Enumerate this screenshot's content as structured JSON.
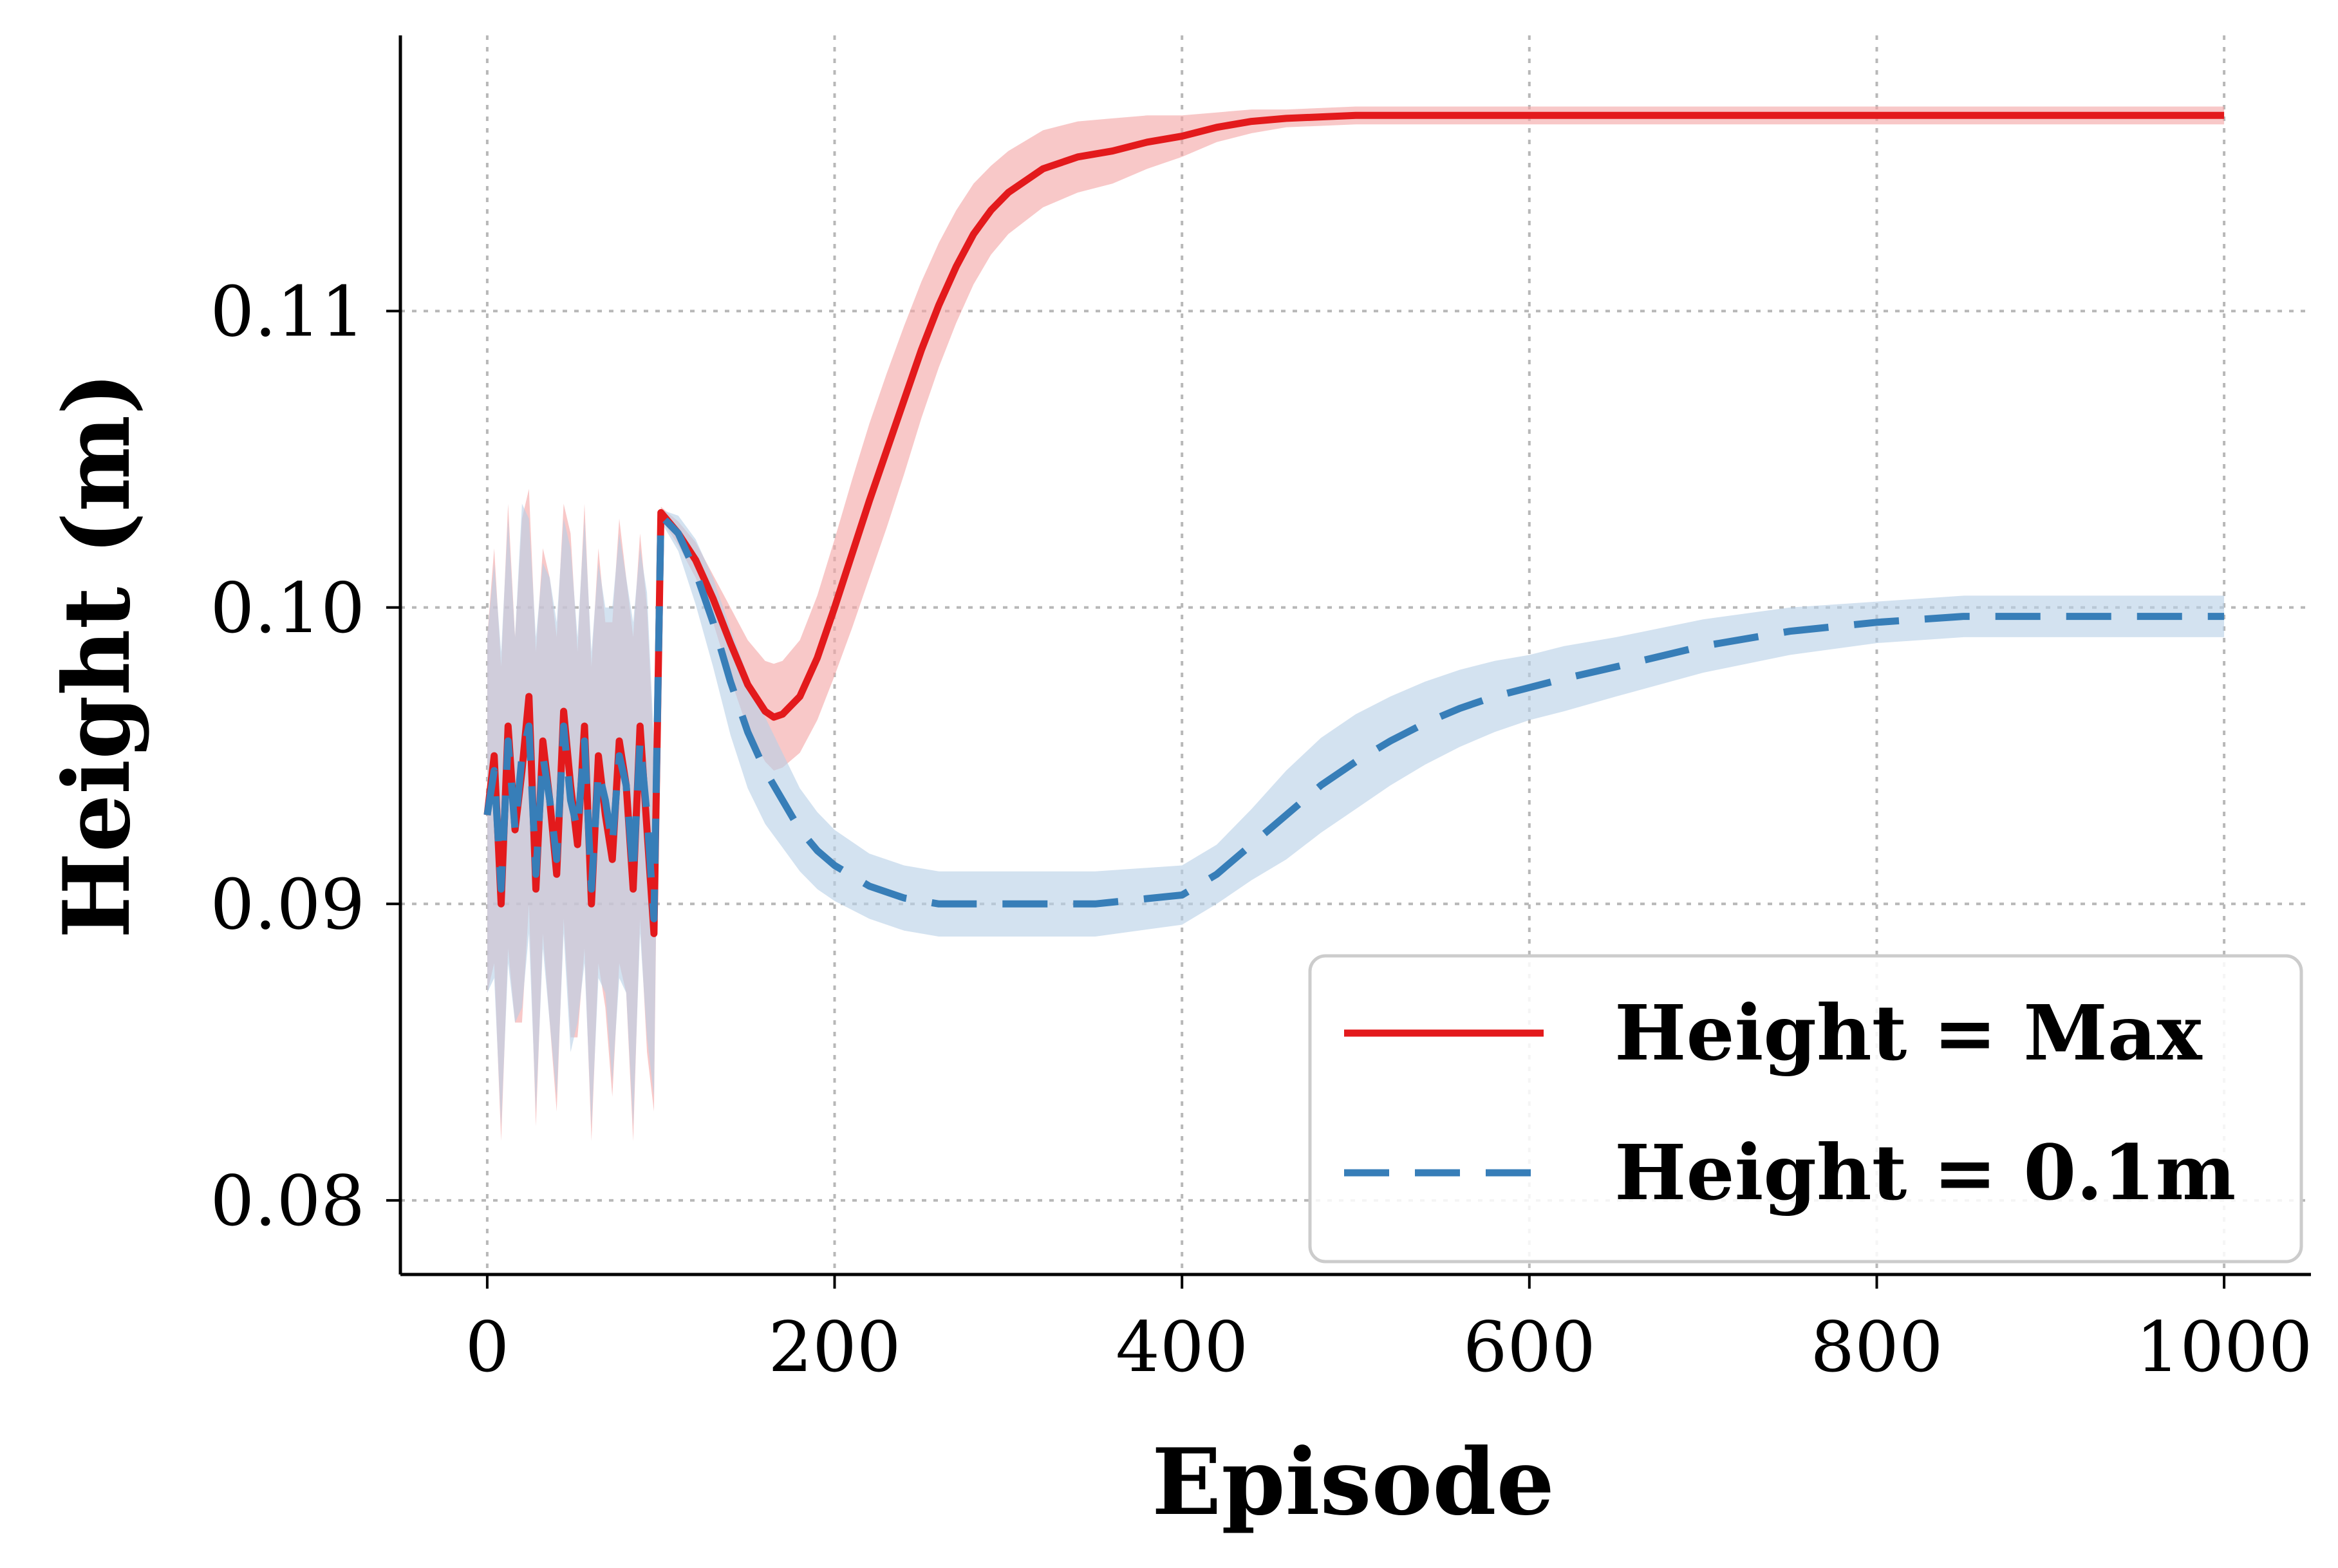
{
  "chart_data": {
    "type": "line",
    "title": "",
    "xlabel": "Episode",
    "ylabel": "Height (m)",
    "xlim": [
      -50,
      1050
    ],
    "ylim": [
      0.0775,
      0.1193
    ],
    "xticks": [
      0,
      200,
      400,
      600,
      800,
      1000
    ],
    "xtick_labels": [
      "0",
      "200",
      "400",
      "600",
      "800",
      "1000"
    ],
    "yticks": [
      0.08,
      0.09,
      0.1,
      0.11
    ],
    "ytick_labels": [
      "0.08",
      "0.09",
      "0.10",
      "0.11"
    ],
    "grid": true,
    "legend_position": "lower-right",
    "series": [
      {
        "name": "Height = Max",
        "label": "Height = Max",
        "color": "#e31a1c",
        "band_color": "#f4a6a6",
        "line_style": "solid",
        "x": [
          0,
          4,
          8,
          12,
          16,
          20,
          24,
          28,
          32,
          36,
          40,
          44,
          48,
          52,
          56,
          60,
          64,
          68,
          72,
          76,
          80,
          84,
          88,
          92,
          96,
          100,
          110,
          120,
          130,
          140,
          150,
          160,
          165,
          170,
          180,
          190,
          200,
          210,
          220,
          230,
          240,
          250,
          260,
          270,
          280,
          290,
          300,
          320,
          340,
          360,
          380,
          400,
          420,
          440,
          460,
          500,
          550,
          600,
          700,
          800,
          900,
          1000
        ],
        "y": [
          0.093,
          0.095,
          0.09,
          0.096,
          0.0925,
          0.0945,
          0.097,
          0.0905,
          0.0955,
          0.0935,
          0.091,
          0.0965,
          0.094,
          0.092,
          0.096,
          0.09,
          0.095,
          0.093,
          0.0915,
          0.0955,
          0.094,
          0.0905,
          0.096,
          0.0925,
          0.089,
          0.1032,
          0.1025,
          0.1016,
          0.1003,
          0.0988,
          0.0974,
          0.0965,
          0.0963,
          0.0964,
          0.097,
          0.0983,
          0.1,
          0.1018,
          0.1036,
          0.1053,
          0.107,
          0.1087,
          0.1102,
          0.1115,
          0.1126,
          0.1134,
          0.114,
          0.1148,
          0.1152,
          0.1154,
          0.1157,
          0.1159,
          0.1162,
          0.1164,
          0.1165,
          0.1166,
          0.1166,
          0.1166,
          0.1166,
          0.1166,
          0.1166,
          0.1166
        ],
        "band": [
          0.006,
          0.007,
          0.008,
          0.0075,
          0.0065,
          0.0085,
          0.007,
          0.008,
          0.0065,
          0.0075,
          0.008,
          0.007,
          0.0085,
          0.0065,
          0.0075,
          0.008,
          0.007,
          0.0065,
          0.008,
          0.0075,
          0.007,
          0.0085,
          0.0065,
          0.0075,
          0.006,
          0.0002,
          0.0004,
          0.0006,
          0.0008,
          0.0012,
          0.0015,
          0.0017,
          0.0018,
          0.0018,
          0.0019,
          0.0021,
          0.0023,
          0.0025,
          0.0026,
          0.0026,
          0.0025,
          0.0023,
          0.0021,
          0.0019,
          0.0017,
          0.0015,
          0.0014,
          0.0013,
          0.0012,
          0.0011,
          0.0009,
          0.0007,
          0.0005,
          0.0004,
          0.0003,
          0.0003,
          0.0003,
          0.0003,
          0.0003,
          0.0003,
          0.0003,
          0.0003
        ]
      },
      {
        "name": "Height = 0.1m",
        "label": "Height = 0.1m",
        "color": "#377eb8",
        "band_color": "#b8d0e6",
        "line_style": "dashed",
        "x": [
          0,
          4,
          8,
          12,
          16,
          20,
          24,
          28,
          32,
          36,
          40,
          44,
          48,
          52,
          56,
          60,
          64,
          68,
          72,
          76,
          80,
          84,
          88,
          92,
          96,
          100,
          110,
          120,
          130,
          140,
          150,
          160,
          170,
          180,
          190,
          200,
          220,
          240,
          260,
          280,
          300,
          350,
          400,
          420,
          440,
          460,
          480,
          500,
          520,
          540,
          560,
          580,
          600,
          620,
          650,
          700,
          750,
          800,
          850,
          900,
          950,
          1000
        ],
        "y": [
          0.093,
          0.0945,
          0.0905,
          0.0955,
          0.0925,
          0.095,
          0.096,
          0.091,
          0.095,
          0.0935,
          0.0915,
          0.096,
          0.0935,
          0.0925,
          0.0955,
          0.0905,
          0.0945,
          0.0935,
          0.092,
          0.095,
          0.094,
          0.091,
          0.0955,
          0.093,
          0.0895,
          0.1031,
          0.1025,
          0.1012,
          0.0995,
          0.0975,
          0.0958,
          0.0945,
          0.0935,
          0.0925,
          0.0918,
          0.0913,
          0.0906,
          0.0902,
          0.09,
          0.09,
          0.09,
          0.09,
          0.0903,
          0.091,
          0.092,
          0.093,
          0.094,
          0.0948,
          0.0955,
          0.0961,
          0.0966,
          0.097,
          0.0973,
          0.0976,
          0.098,
          0.0987,
          0.0992,
          0.0995,
          0.0997,
          0.0997,
          0.0997,
          0.0997
        ],
        "band": [
          0.006,
          0.007,
          0.008,
          0.0075,
          0.0065,
          0.0085,
          0.007,
          0.008,
          0.0065,
          0.0075,
          0.008,
          0.007,
          0.0085,
          0.0065,
          0.0075,
          0.008,
          0.007,
          0.0065,
          0.008,
          0.0075,
          0.007,
          0.0085,
          0.0065,
          0.0075,
          0.006,
          0.0002,
          0.0006,
          0.0011,
          0.0015,
          0.0018,
          0.0019,
          0.0018,
          0.0016,
          0.0014,
          0.0013,
          0.0012,
          0.0011,
          0.0011,
          0.0011,
          0.0011,
          0.0011,
          0.0011,
          0.001,
          0.001,
          0.0012,
          0.0015,
          0.0016,
          0.0016,
          0.0015,
          0.0014,
          0.0013,
          0.0012,
          0.0011,
          0.0011,
          0.001,
          0.0009,
          0.0008,
          0.0007,
          0.0007,
          0.0007,
          0.0007,
          0.0007
        ]
      }
    ]
  }
}
